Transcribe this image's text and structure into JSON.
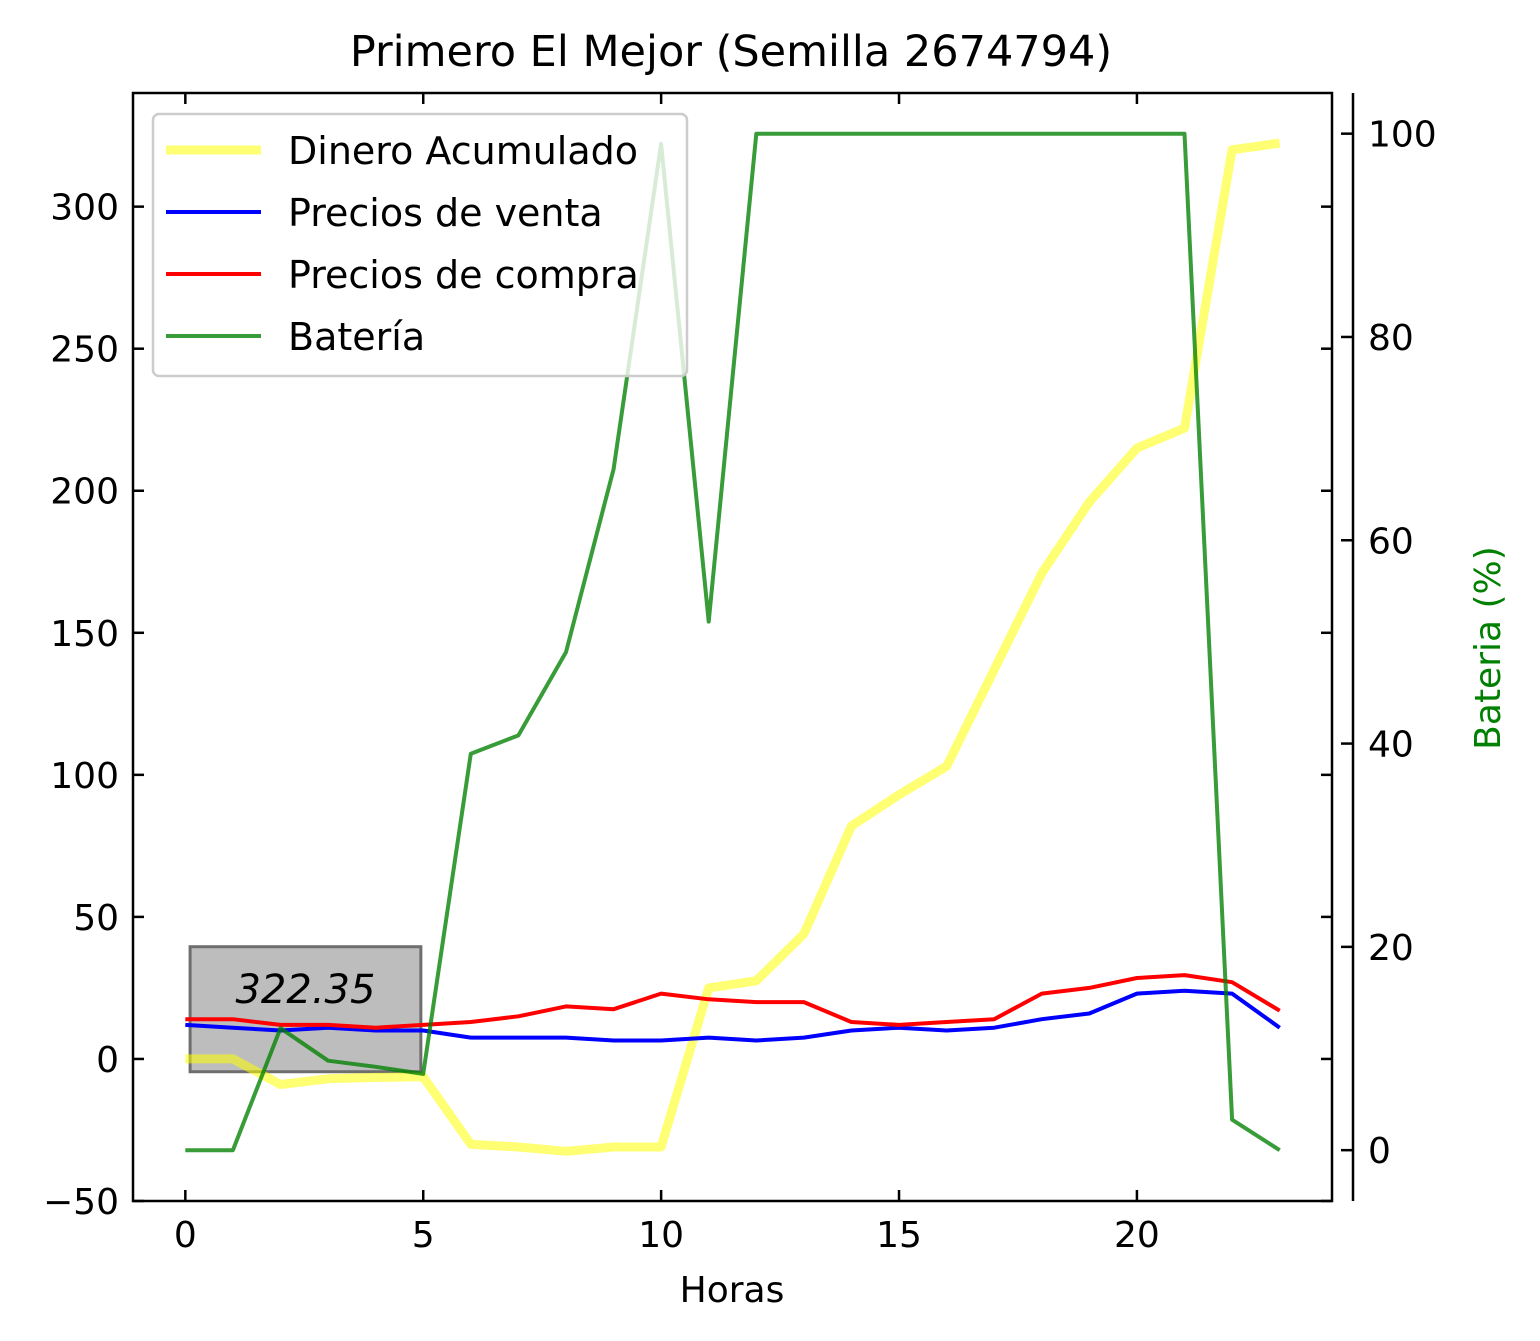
{
  "chart_data": {
    "type": "line",
    "title": "Primero El Mejor (Semilla 2674794)",
    "xlabel": "Horas",
    "ylabel": "",
    "y2label": "Bateria (%)",
    "xlim": [
      -1.1,
      24.1
    ],
    "ylim": [
      -50,
      340
    ],
    "y2lim": [
      -5,
      104
    ],
    "xticks": [
      0,
      5,
      10,
      15,
      20
    ],
    "yticks": [
      -50,
      0,
      50,
      100,
      150,
      200,
      250,
      300
    ],
    "y2ticks": [
      0,
      20,
      40,
      60,
      80,
      100
    ],
    "grid": false,
    "legend_position": "upper-left",
    "x": [
      0,
      1,
      2,
      3,
      4,
      5,
      6,
      7,
      8,
      9,
      10,
      11,
      12,
      13,
      14,
      15,
      16,
      17,
      18,
      19,
      20,
      21,
      22,
      23
    ],
    "series": [
      {
        "name": "Dinero Acumulado",
        "axis": "left",
        "color": "#ffff00",
        "opacity": 0.55,
        "width": 9,
        "values": [
          0,
          0,
          -9,
          -7,
          -6.5,
          -6.3,
          -30,
          -31,
          -32.5,
          -31,
          -31,
          25,
          27.5,
          44,
          82,
          93,
          103,
          137,
          171,
          196,
          215,
          222,
          320,
          322.35
        ]
      },
      {
        "name": "Precios de venta",
        "axis": "left",
        "color": "#0000ff",
        "opacity": 1,
        "width": 4,
        "values": [
          12,
          11,
          10,
          11,
          10,
          10,
          7.5,
          7.5,
          7.5,
          6.5,
          6.5,
          7.5,
          6.5,
          7.5,
          10,
          11,
          10,
          11,
          14,
          16,
          23,
          24,
          23,
          11
        ]
      },
      {
        "name": "Precios de compra",
        "axis": "left",
        "color": "#ff0000",
        "opacity": 1,
        "width": 4,
        "values": [
          14,
          14,
          12,
          12,
          11,
          12,
          13,
          15,
          18.5,
          17.5,
          23,
          21,
          20,
          20,
          13,
          12,
          13,
          14,
          23,
          25,
          28.5,
          29.5,
          27,
          17
        ]
      },
      {
        "name": "Batería",
        "axis": "right",
        "color": "#008000",
        "opacity": 0.78,
        "width": 4,
        "values": [
          0,
          0,
          12,
          8.8,
          8.2,
          7.5,
          39,
          40.8,
          49,
          67,
          99,
          52,
          100,
          100,
          100,
          100,
          100,
          100,
          100,
          100,
          100,
          100,
          3,
          0
        ]
      }
    ],
    "annotation": {
      "text": "322.35",
      "x_range": [
        0.1,
        4.95
      ],
      "y_range": [
        -4.5,
        39.5
      ]
    }
  }
}
